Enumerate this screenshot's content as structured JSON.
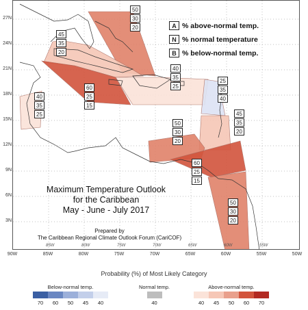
{
  "title_lines": [
    "Maximum Temperature Outlook",
    "for the Caribbean",
    "May - June - July 2017"
  ],
  "prepared_lines": [
    "Prepared by",
    "The Caribbean Regional Climate Outlook Forum (CariCOF)"
  ],
  "legend": {
    "above": {
      "key": "A",
      "text": "% above-normal temp."
    },
    "normal": {
      "key": "N",
      "text": "% normal temperature"
    },
    "below": {
      "key": "B",
      "text": "% below-normal temp."
    }
  },
  "lat_labels": [
    "27N",
    "24N",
    "21N",
    "18N",
    "15N",
    "12N",
    "9N",
    "6N",
    "3N"
  ],
  "lon_labels": [
    "90W",
    "85W",
    "80W",
    "75W",
    "70W",
    "65W",
    "60W",
    "55W",
    "50W"
  ],
  "inner_lon_labels": [
    "85W",
    "80W",
    "75W",
    "70W",
    "65W",
    "60W",
    "55W"
  ],
  "regions": [
    {
      "id": "bahamas",
      "values": [
        "50",
        "30",
        "20"
      ],
      "color": "#e0826a"
    },
    {
      "id": "cuba-west",
      "values": [
        "45",
        "35",
        "20"
      ],
      "color": "#f6c7b6"
    },
    {
      "id": "cuba-south",
      "values": [
        "60",
        "25",
        "15"
      ],
      "color": "#d2543c"
    },
    {
      "id": "hispaniola",
      "values": [
        "40",
        "35",
        "25"
      ],
      "color": "#fbe3d9"
    },
    {
      "id": "central-america",
      "values": [
        "40",
        "35",
        "25"
      ],
      "color": "#fbe3d9"
    },
    {
      "id": "lesser-antilles-north",
      "values": [
        "25",
        "35",
        "40"
      ],
      "color": "#dde3f4"
    },
    {
      "id": "lesser-antilles-south",
      "values": [
        "45",
        "35",
        "20"
      ],
      "color": "#f6c7b6"
    },
    {
      "id": "south-caribbean",
      "values": [
        "50",
        "30",
        "20"
      ],
      "color": "#e0826a"
    },
    {
      "id": "trinidad",
      "values": [
        "60",
        "25",
        "15"
      ],
      "color": "#d2543c"
    },
    {
      "id": "guianas",
      "values": [
        "50",
        "30",
        "20"
      ],
      "color": "#e0826a"
    }
  ],
  "bottom": {
    "title": "Probability (%) of Most Likely Category",
    "below": {
      "label": "Below-normal temp.",
      "ticks": [
        "70",
        "60",
        "50",
        "45",
        "40"
      ],
      "colors": [
        "#3a5fa3",
        "#6a87c2",
        "#9cb0da",
        "#c3cfea",
        "#e6ebf6"
      ]
    },
    "normal": {
      "label": "Normal temp.",
      "ticks": [
        "40"
      ],
      "colors": [
        "#bdbdbd"
      ]
    },
    "above": {
      "label": "Above-normal temp.",
      "ticks": [
        "40",
        "45",
        "50",
        "60",
        "70"
      ],
      "colors": [
        "#fbe3d9",
        "#f6c7b6",
        "#e9a08c",
        "#d2543c",
        "#b22a22"
      ]
    }
  }
}
